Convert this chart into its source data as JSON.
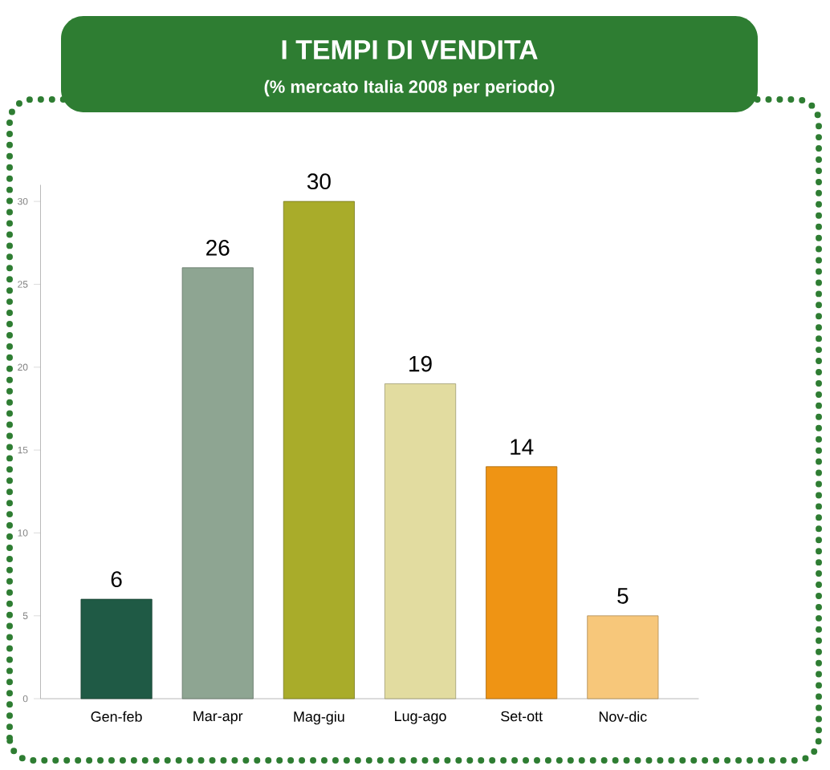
{
  "chart_data": {
    "type": "bar",
    "title": "I TEMPI DI VENDITA",
    "subtitle": "(% mercato Italia 2008 per periodo)",
    "categories": [
      "Gen-feb",
      "Mar-apr",
      "Mag-giu",
      "Lug-ago",
      "Set-ott",
      "Nov-dic"
    ],
    "values": [
      6,
      26,
      30,
      19,
      14,
      5
    ],
    "colors": [
      "#1f5a45",
      "#8ea592",
      "#a9ac2a",
      "#e2dca0",
      "#ef9414",
      "#f7c77a"
    ],
    "ylim": [
      0,
      31
    ],
    "yticks": [
      0,
      5,
      10,
      15,
      20,
      25,
      30
    ],
    "data_labels": true
  }
}
